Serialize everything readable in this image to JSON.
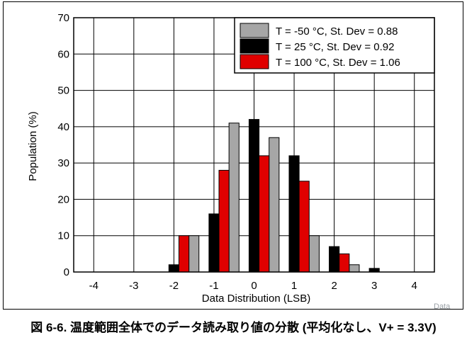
{
  "chart_data": {
    "type": "bar",
    "xlabel": "Data Distribution (LSB)",
    "ylabel": "Population (%)",
    "ylim": [
      0,
      70
    ],
    "xlim": [
      -4.5,
      4.5
    ],
    "xticks": [
      "-4",
      "-3",
      "-2",
      "-1",
      "0",
      "1",
      "2",
      "3",
      "4"
    ],
    "yticks": [
      "0",
      "10",
      "20",
      "30",
      "40",
      "50",
      "60",
      "70"
    ],
    "grid": true,
    "legend_position": "top-right",
    "series": [
      {
        "name": "T = -50 °C, St. Dev = 0.88",
        "color": "#a6a6a6",
        "x": [
          -1.5,
          -0.5,
          0.5,
          1.5,
          2.5
        ],
        "values": [
          10,
          41,
          37,
          10,
          2
        ]
      },
      {
        "name": "T = 25 °C, St. Dev = 0.92",
        "color": "#000000",
        "x": [
          -2,
          -1,
          0,
          1,
          2,
          3
        ],
        "values": [
          2,
          16,
          42,
          32,
          7,
          1
        ]
      },
      {
        "name": "T = 100 °C, St. Dev = 1.06",
        "color": "#e00000",
        "x": [
          -1.75,
          -0.75,
          0.25,
          1.25,
          2.25
        ],
        "values": [
          10,
          28,
          32,
          25,
          5
        ]
      }
    ]
  },
  "watermark": "Data",
  "caption": "図 6-6. 温度範囲全体でのデータ読み取り値の分散 (平均化なし、V+ = 3.3V)"
}
